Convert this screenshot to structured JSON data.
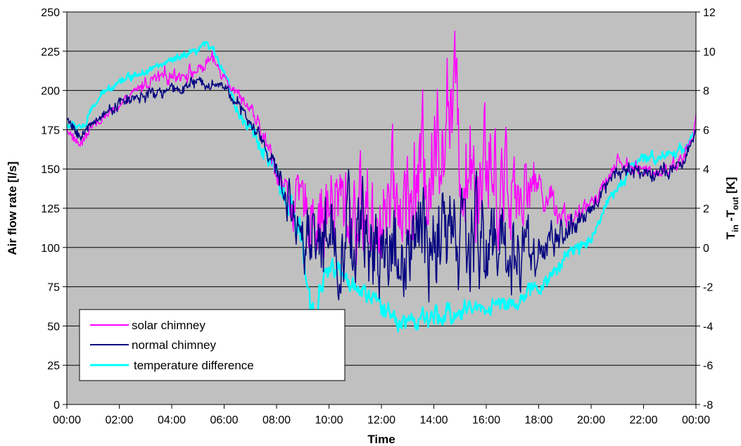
{
  "chart_data": {
    "type": "line",
    "title": "",
    "xlabel": "Time",
    "ylabel": "Air flow rate [l/s]",
    "y2label": {
      "base": "T",
      "sub1": "in",
      "mid": " -T",
      "sub2": "out",
      "unit": " [K]"
    },
    "x_ticks": [
      "00:00",
      "02:00",
      "04:00",
      "06:00",
      "08:00",
      "10:00",
      "12:00",
      "14:00",
      "16:00",
      "18:00",
      "20:00",
      "22:00",
      "00:00"
    ],
    "x_range_hours": [
      0,
      24
    ],
    "ylim": [
      0,
      250
    ],
    "y_ticks": [
      0,
      25,
      50,
      75,
      100,
      125,
      150,
      175,
      200,
      225,
      250
    ],
    "y2lim": [
      -8,
      12
    ],
    "y2_ticks": [
      -8,
      -6,
      -4,
      -2,
      0,
      2,
      4,
      6,
      8,
      10,
      12
    ],
    "grid": true,
    "legend_position": "bottom-left",
    "plot_background": "#c0c0c0",
    "series": [
      {
        "name": "solar chimney",
        "axis": "left",
        "color": "#ff00ff",
        "noise": 2.5,
        "x": [
          0,
          0.5,
          1,
          2,
          3,
          4,
          5,
          5.5,
          6,
          6.5,
          7,
          7.5,
          8,
          8.5,
          9,
          10,
          11,
          12,
          13,
          14,
          14.5,
          15,
          16,
          17,
          18,
          19,
          19.5,
          20,
          20.5,
          21,
          22,
          23,
          23.5,
          23.9,
          24
        ],
        "y": [
          175,
          165,
          178,
          190,
          205,
          210,
          212,
          220,
          210,
          198,
          188,
          170,
          150,
          130,
          125,
          125,
          123,
          123,
          130,
          160,
          200,
          165,
          155,
          140,
          140,
          120,
          118,
          130,
          140,
          155,
          148,
          150,
          158,
          170,
          185
        ],
        "osc": [
          0,
          0,
          0,
          0,
          3,
          3,
          3,
          3,
          2,
          2,
          2,
          4,
          6,
          10,
          15,
          25,
          25,
          25,
          30,
          35,
          35,
          35,
          35,
          25,
          10,
          6,
          4,
          3,
          3,
          3,
          3,
          3,
          3,
          2,
          0
        ]
      },
      {
        "name": "normal chimney",
        "axis": "left",
        "color": "#000080",
        "noise": 2.5,
        "x": [
          0,
          0.5,
          1,
          2,
          3,
          4,
          5,
          6,
          6.5,
          7,
          7.5,
          8,
          8.5,
          9,
          10,
          11,
          12,
          13,
          14,
          15,
          16,
          17,
          18,
          19,
          19.5,
          20,
          20.5,
          21,
          22,
          23,
          23.5,
          24
        ],
        "y": [
          182,
          170,
          180,
          192,
          197,
          200,
          205,
          203,
          192,
          178,
          168,
          148,
          128,
          112,
          110,
          105,
          100,
          98,
          102,
          105,
          105,
          100,
          98,
          110,
          112,
          125,
          138,
          150,
          148,
          148,
          152,
          175
        ],
        "osc": [
          0,
          0,
          0,
          2,
          2,
          2,
          2,
          2,
          2,
          3,
          3,
          5,
          10,
          15,
          25,
          25,
          28,
          28,
          28,
          28,
          28,
          25,
          12,
          8,
          5,
          3,
          3,
          3,
          3,
          3,
          2,
          0
        ]
      },
      {
        "name": "temperature difference",
        "axis": "right",
        "color": "#00ffff",
        "noise": 0.12,
        "x": [
          0,
          0.7,
          1,
          1.5,
          2,
          3,
          4,
          5,
          5.3,
          5.6,
          6,
          6.5,
          7,
          7.5,
          8,
          8.5,
          9,
          9.3,
          9.6,
          10,
          10.5,
          11,
          11.5,
          12,
          12.5,
          13,
          14,
          15,
          16,
          17,
          17.5,
          18,
          18.5,
          19,
          19.5,
          20,
          20.5,
          21,
          21.5,
          22,
          23,
          23.5,
          24
        ],
        "y": [
          6.2,
          6.2,
          7.2,
          8.0,
          8.5,
          9.0,
          9.5,
          10.0,
          10.4,
          10.0,
          9.0,
          7.0,
          6.0,
          5.0,
          3.5,
          2.0,
          0.0,
          -3.0,
          -2.5,
          -1.0,
          -1.5,
          -2.0,
          -2.5,
          -3.0,
          -3.5,
          -3.8,
          -3.7,
          -3.2,
          -3.0,
          -2.8,
          -2.5,
          -2.0,
          -1.5,
          -0.5,
          0.0,
          0.5,
          2.0,
          3.0,
          4.0,
          4.5,
          4.8,
          5.0,
          6.0
        ],
        "osc": [
          0.1,
          0.1,
          0.1,
          0.1,
          0.1,
          0.1,
          0.1,
          0.1,
          0.1,
          0.1,
          0.1,
          0.2,
          0.3,
          0.3,
          0.4,
          0.6,
          0.8,
          0.8,
          0.6,
          0.4,
          0.3,
          0.3,
          0.3,
          0.4,
          0.4,
          0.4,
          0.4,
          0.4,
          0.3,
          0.3,
          0.3,
          0.3,
          0.3,
          0.3,
          0.3,
          0.2,
          0.2,
          0.2,
          0.2,
          0.2,
          0.2,
          0.2,
          0.1
        ]
      }
    ]
  }
}
